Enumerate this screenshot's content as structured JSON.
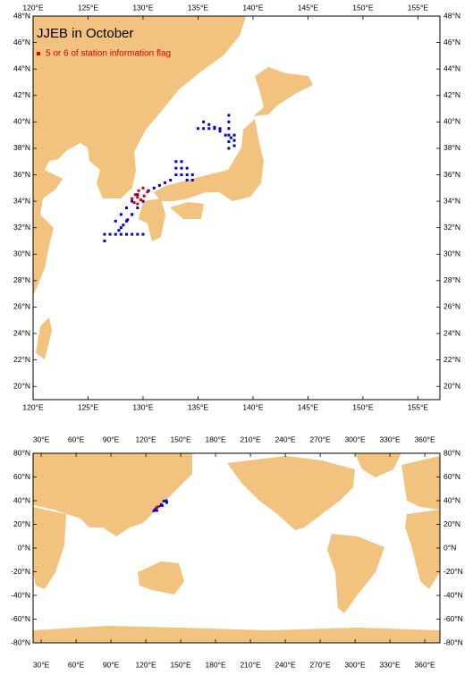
{
  "top_map": {
    "title": "JJEB in October",
    "legend": "5 or 6 of station information flag",
    "legend_color": "#dd0000",
    "station_color": "#0000dd",
    "xlim": [
      120,
      157
    ],
    "ylim": [
      19,
      48
    ],
    "xticks": [
      {
        "value": 120,
        "label": "120°E"
      },
      {
        "value": 125,
        "label": "125°E"
      },
      {
        "value": 130,
        "label": "130°E"
      },
      {
        "value": 135,
        "label": "135°E"
      },
      {
        "value": 140,
        "label": "140°E"
      },
      {
        "value": 145,
        "label": "145°E"
      },
      {
        "value": 150,
        "label": "150°E"
      },
      {
        "value": 155,
        "label": "155°E"
      }
    ],
    "yticks": [
      {
        "value": 20,
        "label": "20°N"
      },
      {
        "value": 22,
        "label": "22°N"
      },
      {
        "value": 24,
        "label": "24°N"
      },
      {
        "value": 26,
        "label": "26°N"
      },
      {
        "value": 28,
        "label": "28°N"
      },
      {
        "value": 30,
        "label": "30°N"
      },
      {
        "value": 32,
        "label": "32°N"
      },
      {
        "value": 34,
        "label": "34°N"
      },
      {
        "value": 36,
        "label": "36°N"
      },
      {
        "value": 38,
        "label": "38°N"
      },
      {
        "value": 40,
        "label": "40°N"
      },
      {
        "value": 42,
        "label": "42°N"
      },
      {
        "value": 44,
        "label": "44°N"
      },
      {
        "value": 46,
        "label": "46°N"
      },
      {
        "value": 48,
        "label": "48°N"
      }
    ],
    "stations": {
      "lon": [
        126.5,
        127,
        127.5,
        128,
        128.5,
        129,
        129.5,
        130,
        126.5,
        127.5,
        128,
        128.5,
        129,
        129.5,
        128,
        128.5,
        129,
        129.5,
        130,
        127.8,
        128.2,
        128.6,
        129,
        130.5,
        131,
        131.5,
        132,
        132.5,
        133,
        133.5,
        134,
        133,
        133.5,
        134,
        134.5,
        133,
        133.5,
        134,
        134.5,
        135,
        135.5,
        136,
        136.5,
        137,
        137.8,
        137.8,
        137.8,
        137.8,
        137.8,
        137.8,
        135.5,
        136,
        136.5,
        137,
        137.5,
        138,
        138.3,
        138.3,
        138.3
      ],
      "lat": [
        31.5,
        31.5,
        31.5,
        31.5,
        31.5,
        31.5,
        31.5,
        31.5,
        31,
        32.5,
        33,
        33.5,
        34,
        34.5,
        32,
        32.5,
        33,
        33.5,
        34,
        31.8,
        32.2,
        32.6,
        33,
        34.8,
        35,
        35.2,
        35.4,
        35.6,
        36.5,
        36.5,
        36.5,
        36,
        36,
        36,
        36,
        37,
        37,
        35.6,
        35.6,
        39.5,
        39.5,
        39.5,
        39.5,
        39.5,
        38,
        38.5,
        39,
        39.5,
        40,
        40.5,
        40,
        39.8,
        39.6,
        39.3,
        39,
        38.8,
        38.2,
        38.6,
        39
      ]
    },
    "flag_stations": {
      "lon": [
        129,
        129.3,
        129.6,
        130,
        129.5,
        129.8,
        130.1,
        130.4,
        129.2,
        129.5
      ],
      "lat": [
        34.2,
        34.5,
        34.8,
        35,
        33.8,
        34.1,
        34.4,
        34.7,
        33.9,
        34.3
      ]
    }
  },
  "world_map": {
    "xlim": [
      23,
      373
    ],
    "ylim": [
      -80,
      80
    ],
    "xticks": [
      {
        "value": 30,
        "label": "30°E"
      },
      {
        "value": 60,
        "label": "60°E"
      },
      {
        "value": 90,
        "label": "90°E"
      },
      {
        "value": 120,
        "label": "120°E"
      },
      {
        "value": 150,
        "label": "150°E"
      },
      {
        "value": 180,
        "label": "180°E"
      },
      {
        "value": 210,
        "label": "210°E"
      },
      {
        "value": 240,
        "label": "240°E"
      },
      {
        "value": 270,
        "label": "270°E"
      },
      {
        "value": 300,
        "label": "300°E"
      },
      {
        "value": 330,
        "label": "330°E"
      },
      {
        "value": 360,
        "label": "360°E"
      }
    ],
    "yticks": [
      {
        "value": -80,
        "label": "-80°N"
      },
      {
        "value": -60,
        "label": "-60°N"
      },
      {
        "value": -40,
        "label": "-40°N"
      },
      {
        "value": -20,
        "label": "-20°N"
      },
      {
        "value": 0,
        "label": "0°N"
      },
      {
        "value": 20,
        "label": "20°N"
      },
      {
        "value": 40,
        "label": "40°N"
      },
      {
        "value": 60,
        "label": "60°N"
      },
      {
        "value": 80,
        "label": "80°N"
      }
    ]
  }
}
